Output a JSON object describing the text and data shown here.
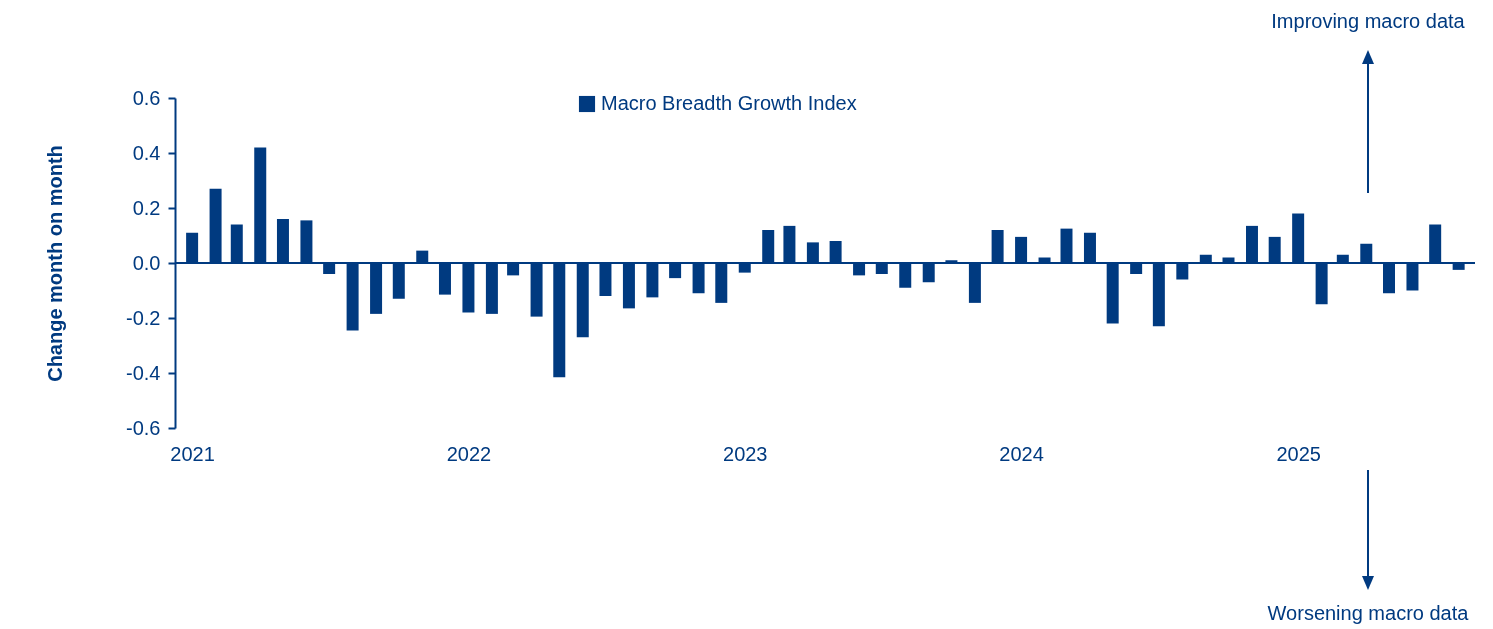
{
  "chart_data": {
    "type": "bar",
    "ylabel": "Change month on month",
    "x": [
      "2021-01",
      "2021-02",
      "2021-03",
      "2021-04",
      "2021-05",
      "2021-06",
      "2021-07",
      "2021-08",
      "2021-09",
      "2021-10",
      "2021-11",
      "2021-12",
      "2022-01",
      "2022-02",
      "2022-03",
      "2022-04",
      "2022-05",
      "2022-06",
      "2022-07",
      "2022-08",
      "2022-09",
      "2022-10",
      "2022-11",
      "2022-12",
      "2023-01",
      "2023-02",
      "2023-03",
      "2023-04",
      "2023-05",
      "2023-06",
      "2023-07",
      "2023-08",
      "2023-09",
      "2023-10",
      "2023-11",
      "2023-12",
      "2024-01",
      "2024-02",
      "2024-03",
      "2024-04",
      "2024-05",
      "2024-06",
      "2024-07",
      "2024-08",
      "2024-09",
      "2024-10",
      "2024-11",
      "2024-12",
      "2025-01",
      "2025-02",
      "2025-03",
      "2025-04",
      "2025-05",
      "2025-06",
      "2025-07",
      "2025-08"
    ],
    "series": [
      {
        "name": "Macro Breadth Growth Index",
        "color": "#003a80",
        "values": [
          0.11,
          0.27,
          0.14,
          0.42,
          0.16,
          0.155,
          -0.04,
          -0.245,
          -0.185,
          -0.13,
          0.045,
          -0.115,
          -0.18,
          -0.185,
          -0.045,
          -0.195,
          -0.415,
          -0.27,
          -0.12,
          -0.165,
          -0.125,
          -0.055,
          -0.11,
          -0.145,
          -0.035,
          0.12,
          0.135,
          0.075,
          0.08,
          -0.045,
          -0.04,
          -0.09,
          -0.07,
          0.01,
          -0.145,
          0.12,
          0.095,
          0.02,
          0.125,
          0.11,
          -0.22,
          -0.04,
          -0.23,
          -0.06,
          0.03,
          0.02,
          0.135,
          0.095,
          0.18,
          -0.15,
          0.03,
          0.07,
          -0.11,
          -0.1,
          0.14,
          -0.025
        ]
      }
    ],
    "xlim": [
      "2020-12-16",
      "2025-08-16"
    ],
    "xticks": [
      "2021",
      "2022",
      "2023",
      "2024",
      "2025"
    ],
    "ylim": [
      -0.6,
      0.6
    ],
    "yticks": [
      -0.6,
      -0.4,
      -0.2,
      {
        "value": 0,
        "label": "0.0"
      },
      0.2,
      0.4,
      0.6
    ],
    "ref_lines": [
      {
        "axis": "y",
        "value": 0
      }
    ],
    "annotations": [
      "Improving macro data",
      "Worsening macro data"
    ],
    "legend": "top",
    "grid": false
  }
}
